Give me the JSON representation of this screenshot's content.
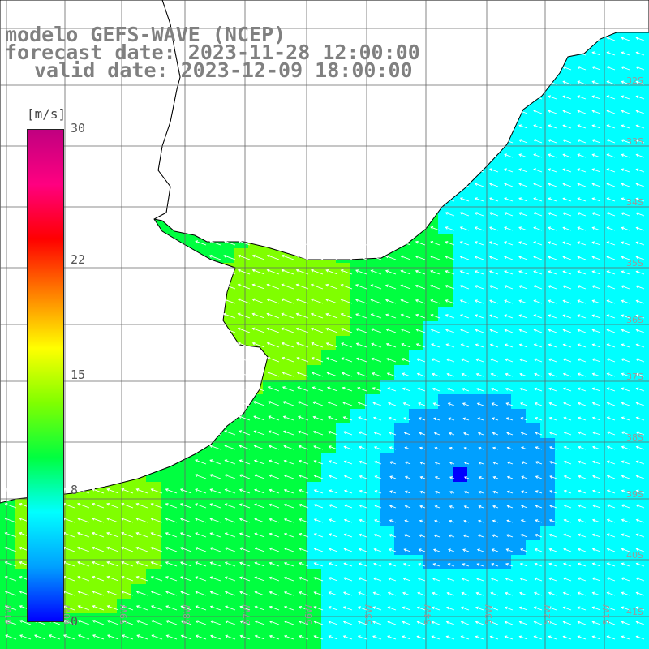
{
  "title": {
    "line1": "modelo GEFS-WAVE (NCEP)",
    "line2": "forecast date: 2023-11-28 12:00:00",
    "line3": "valid date: 2023-12-09 18:00:00"
  },
  "colorbar": {
    "unit": "[m/s]",
    "min": 0,
    "max": 30,
    "ticks": [
      "30",
      "22",
      "15",
      "8",
      "0"
    ],
    "tick_values": [
      30,
      22,
      15,
      8,
      0
    ],
    "colors": [
      "#0000ff",
      "#00a0ff",
      "#00ffff",
      "#00ff40",
      "#80ff00",
      "#ffff00",
      "#ff8000",
      "#ff0000",
      "#ff0080",
      "#c00080"
    ]
  },
  "grid": {
    "lat_labels": [
      "32S",
      "33S",
      "34S",
      "35S",
      "36S",
      "37S",
      "38S",
      "39S",
      "40S",
      "41S"
    ],
    "lon_labels": [
      "61W",
      "60W",
      "59W",
      "58W",
      "57W",
      "56W",
      "55W",
      "54W",
      "53W",
      "52W",
      "51W"
    ]
  },
  "map": {
    "land_color": "#ffffff",
    "coast_color": "#000000",
    "arrow_color": "#ffffff"
  }
}
